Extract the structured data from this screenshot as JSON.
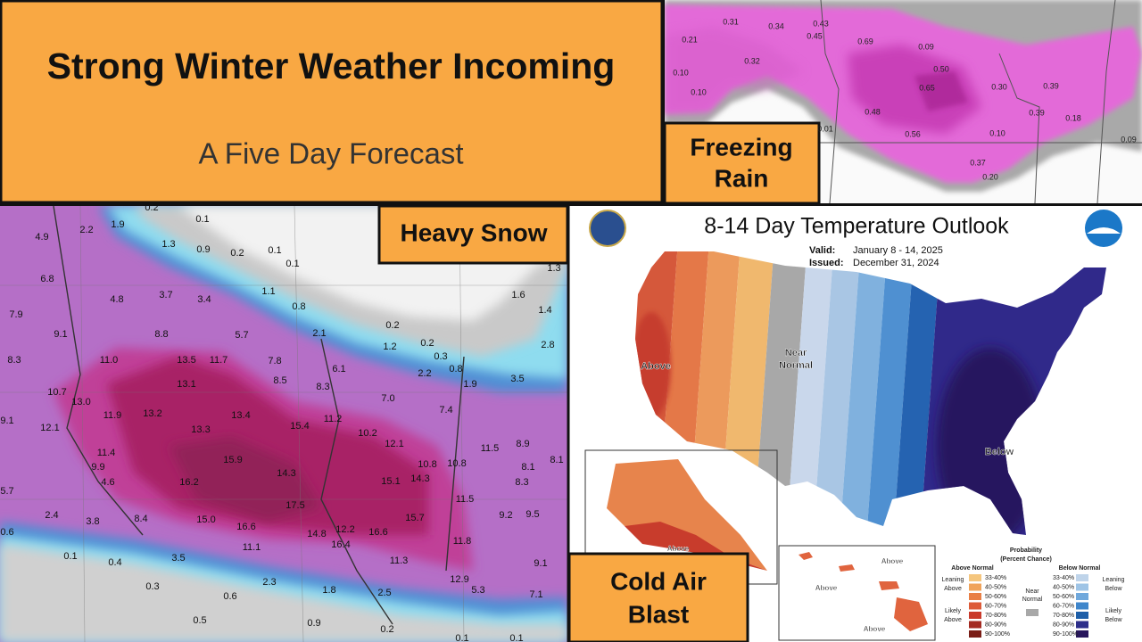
{
  "header": {
    "title": "Strong Winter Weather Incoming",
    "subtitle": "A Five Day Forecast"
  },
  "freezing_rain": {
    "label_lines": [
      "Freezing",
      "Rain"
    ],
    "amounts": [
      "0.31",
      "0.34",
      "0.43",
      "0.45",
      "0.21",
      "0.69",
      "0.09",
      "0.32",
      "0.50",
      "0.10",
      "0.10",
      "0.65",
      "0.30",
      "0.39",
      "0.48",
      "0.39",
      "0.18",
      "0.01",
      "0.56",
      "0.10",
      "0.09",
      "0.37",
      "0.20"
    ]
  },
  "heavy_snow": {
    "label": "Heavy Snow",
    "amounts": [
      "4.9",
      "2.2",
      "1.9",
      "0.2",
      "0.1",
      "1.3",
      "0.9",
      "0.2",
      "0.1",
      "0.1",
      "6.8",
      "4.8",
      "3.7",
      "3.4",
      "1.1",
      "0.8",
      "7.9",
      "9.1",
      "8.8",
      "5.7",
      "2.1",
      "0.2",
      "0.2",
      "1.2",
      "0.3",
      "8.3",
      "11.0",
      "13.5",
      "11.7",
      "7.8",
      "6.1",
      "2.2",
      "0.8",
      "1.9",
      "3.5",
      "10.7",
      "13.1",
      "8.5",
      "8.3",
      "7.0",
      "13.0",
      "7.4",
      "9.1",
      "11.9",
      "13.2",
      "13.4",
      "11.2",
      "12.1",
      "13.3",
      "15.4",
      "10.2",
      "12.1",
      "11.5",
      "8.9",
      "11.4",
      "15.9",
      "10.8",
      "10.8",
      "8.1",
      "8.1",
      "9.9",
      "14.3",
      "15.1",
      "14.3",
      "8.3",
      "4.6",
      "16.2",
      "5.7",
      "11.5",
      "17.5",
      "15.7",
      "9.2",
      "9.5",
      "2.4",
      "3.8",
      "8.4",
      "15.0",
      "16.6",
      "12.2",
      "14.8",
      "16.6",
      "0.6",
      "16.4",
      "11.8",
      "11.1",
      "0.1",
      "0.4",
      "3.5",
      "11.3",
      "9.1",
      "0.3",
      "2.3",
      "12.9",
      "0.6",
      "1.8",
      "2.5",
      "5.3",
      "7.1",
      "0.5",
      "0.9",
      "0.2",
      "0.1",
      "0.1",
      "1.3",
      "1.6",
      "1.4",
      "2.8"
    ]
  },
  "temperature_outlook": {
    "title": "8-14 Day Temperature Outlook",
    "valid_label": "Valid:",
    "valid": "January 8 - 14, 2025",
    "issued_label": "Issued:",
    "issued": "December 31, 2024",
    "region_labels": [
      "Above",
      "Near",
      "Normal",
      "Below",
      "Above",
      "Above",
      "Above",
      "Above"
    ],
    "legend": {
      "title": "Probability",
      "subtitle": "(Percent Chance)",
      "above_header": "Above Normal",
      "below_header": "Below Normal",
      "side_labels": [
        "Leaning",
        "Above",
        "Likely",
        "Above",
        "Near",
        "Normal",
        "Leaning",
        "Below",
        "Likely",
        "Below"
      ],
      "above_ranges": [
        "33-40%",
        "40-50%",
        "50-60%",
        "60-70%",
        "70-80%",
        "80-90%",
        "90-100%"
      ],
      "below_ranges": [
        "33-40%",
        "40-50%",
        "50-60%",
        "60-70%",
        "70-80%",
        "80-90%",
        "90-100%"
      ]
    }
  },
  "cold_air": {
    "label_lines": [
      "Cold Air",
      "Blast"
    ]
  }
}
